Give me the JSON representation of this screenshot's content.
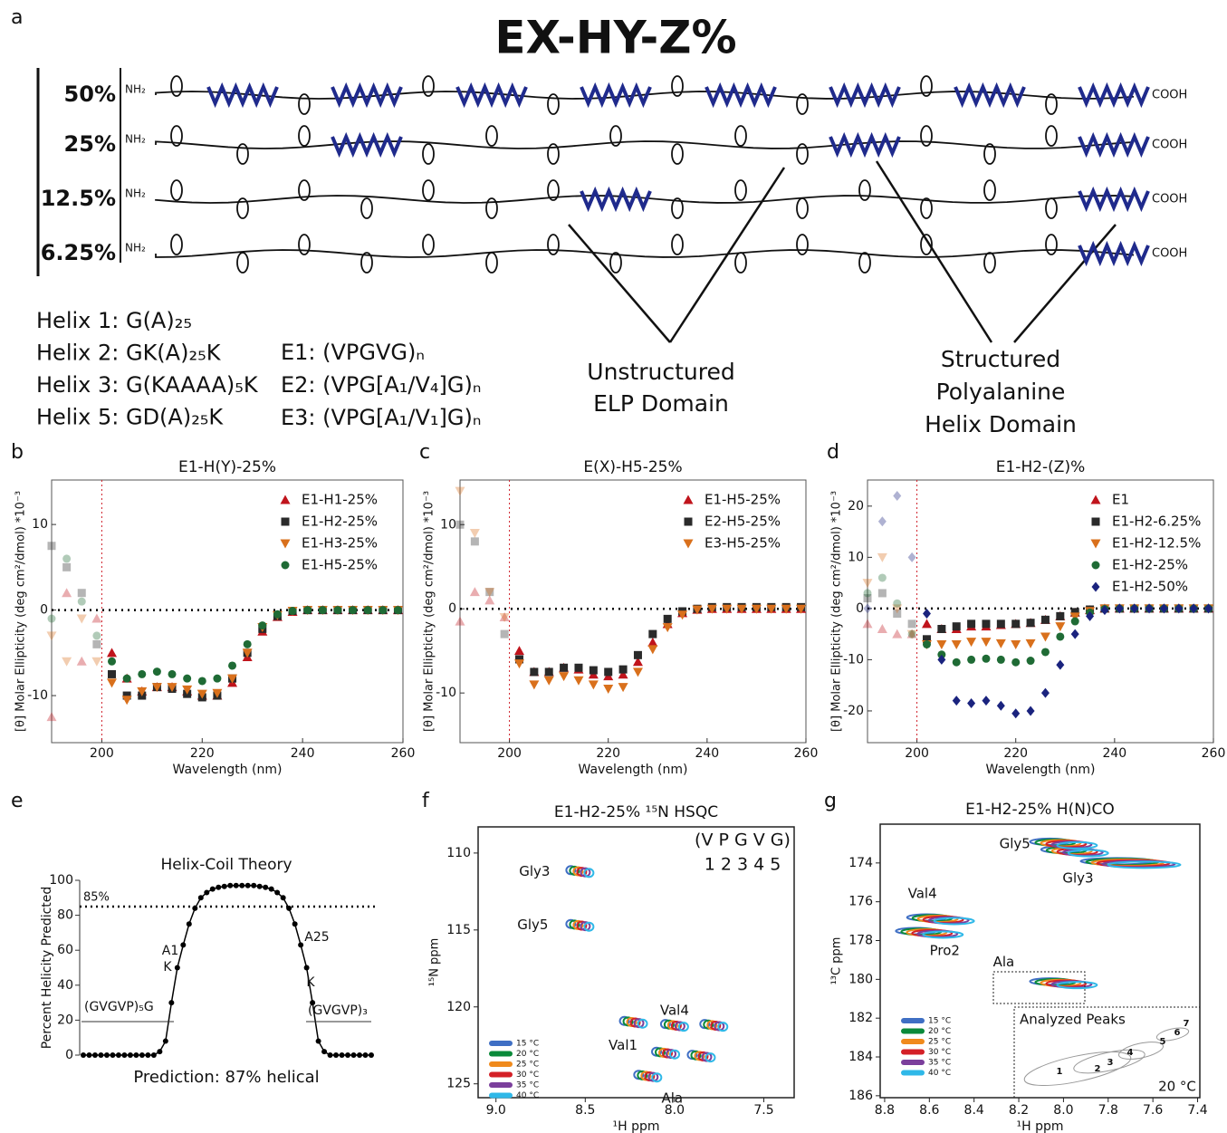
{
  "panel_a": {
    "panel": "a",
    "title": "EX-HY-Z%",
    "rows": [
      "50%",
      "25%",
      "12.5%",
      "6.25%"
    ],
    "n_terminus": "NH₂",
    "c_terminus": "COOH",
    "helices": [
      "Helix 1: G(A)₂₅",
      "Helix 2: GK(A)₂₅K",
      "Helix 3: G(KAAAA)₅K",
      "Helix 5: GD(A)₂₅K"
    ],
    "elps": [
      "E1: (VPGVG)ₙ",
      "E2: (VPG[A₁/V₄]G)ₙ",
      "E3: (VPG[A₁/V₁]G)ₙ"
    ],
    "unstructured": [
      "Unstructured",
      "ELP Domain"
    ],
    "structured": [
      "Structured",
      "Polyalanine",
      "Helix Domain"
    ]
  },
  "chart_data": [
    {
      "type": "scatter",
      "panel": "b",
      "title": "E1-H(Y)-25%",
      "x_label": "Wavelength (nm)",
      "y_label": "[θ] Molar Ellipticity (deg cm²/dmol) *10⁻³",
      "xlim": [
        190,
        260
      ],
      "ylim": [
        -15.5,
        15.2
      ],
      "xticks": [
        200,
        220,
        240,
        260
      ],
      "yticks": [
        -10,
        0,
        10
      ],
      "zero_line": true,
      "vline": 200,
      "x": [
        190,
        193,
        196,
        199,
        202,
        205,
        208,
        211,
        214,
        217,
        220,
        223,
        226,
        229,
        232,
        235,
        238,
        241,
        244,
        247,
        250,
        253,
        256,
        259
      ],
      "series": [
        {
          "name": "E1-H1-25%",
          "color": "#c0141c",
          "marker": "triangle-up",
          "values": [
            -12.5,
            2,
            -6,
            -1,
            -5,
            -8,
            -9.5,
            -9,
            -9,
            -9.5,
            -10,
            -10,
            -8.5,
            -5.5,
            -2.5,
            -0.8,
            -0.2,
            0,
            0,
            0,
            0,
            0,
            0,
            0
          ]
        },
        {
          "name": "E1-H2-25%",
          "color": "#2a2a2a",
          "marker": "square",
          "values": [
            7.5,
            5,
            2,
            -4,
            -7.5,
            -10,
            -10,
            -9,
            -9.2,
            -9.8,
            -10.2,
            -10,
            -8,
            -5,
            -2.2,
            -0.7,
            -0.1,
            0,
            0,
            0,
            0,
            0,
            0,
            0
          ]
        },
        {
          "name": "E1-H3-25%",
          "color": "#d9701c",
          "marker": "triangle-down",
          "values": [
            -3,
            -6,
            -1,
            -6,
            -8.5,
            -10.5,
            -9.5,
            -9,
            -9,
            -9.3,
            -9.8,
            -9.7,
            -8,
            -5,
            -2,
            -0.6,
            -0.1,
            0,
            0,
            0,
            0,
            0,
            0,
            0
          ]
        },
        {
          "name": "E1-H5-25%",
          "color": "#1f6b35",
          "marker": "circle",
          "values": [
            -1,
            6,
            1,
            -3,
            -6,
            -8,
            -7.5,
            -7.2,
            -7.5,
            -8,
            -8.3,
            -8,
            -6.5,
            -4,
            -1.8,
            -0.5,
            -0.1,
            0,
            0,
            0,
            0,
            0,
            0,
            0
          ]
        }
      ]
    },
    {
      "type": "scatter",
      "panel": "c",
      "title": "E(X)-H5-25%",
      "x_label": "Wavelength (nm)",
      "y_label": "[θ] Molar Ellipticity (deg cm²/dmol) *10⁻³",
      "xlim": [
        190,
        260
      ],
      "ylim": [
        -15.9,
        15.3
      ],
      "xticks": [
        200,
        220,
        240,
        260
      ],
      "yticks": [
        -10,
        0,
        10
      ],
      "zero_line": true,
      "vline": 200,
      "x": [
        190,
        193,
        196,
        199,
        202,
        205,
        208,
        211,
        214,
        217,
        220,
        223,
        226,
        229,
        232,
        235,
        238,
        241,
        244,
        247,
        250,
        253,
        256,
        259
      ],
      "series": [
        {
          "name": "E1-H5-25%",
          "color": "#c0141c",
          "marker": "triangle-up",
          "values": [
            -1.5,
            2,
            1,
            -1,
            -5,
            -7.5,
            -7.5,
            -7,
            -7.2,
            -7.8,
            -8,
            -7.8,
            -6.3,
            -4,
            -1.8,
            -0.5,
            -0.1,
            0,
            0,
            0,
            0,
            0,
            0,
            0
          ]
        },
        {
          "name": "E2-H5-25%",
          "color": "#2a2a2a",
          "marker": "square",
          "values": [
            10,
            8,
            2,
            -3,
            -6,
            -7.5,
            -7.5,
            -7,
            -7,
            -7.3,
            -7.5,
            -7.2,
            -5.5,
            -3,
            -1.2,
            -0.3,
            0,
            0.2,
            0.2,
            0.2,
            0.2,
            0.2,
            0.2,
            0.2
          ]
        },
        {
          "name": "E3-H5-25%",
          "color": "#d9701c",
          "marker": "triangle-down",
          "values": [
            14,
            9,
            2,
            -1,
            -6.5,
            -9,
            -8.5,
            -8,
            -8.5,
            -9,
            -9.5,
            -9.3,
            -7.5,
            -4.8,
            -2.2,
            -0.7,
            -0.1,
            0,
            0,
            0,
            0,
            0,
            0,
            0
          ]
        }
      ]
    },
    {
      "type": "scatter",
      "panel": "d",
      "title": "E1-H2-(Z)%",
      "x_label": "Wavelength (nm)",
      "y_label": "[θ] Molar Ellipticity (deg cm²/dmol) *10⁻³",
      "xlim": [
        190,
        260
      ],
      "ylim": [
        -26.2,
        25.1
      ],
      "xticks": [
        200,
        220,
        240,
        260
      ],
      "yticks": [
        -20,
        -10,
        0,
        10,
        20
      ],
      "zero_line": true,
      "vline": 200,
      "x": [
        190,
        193,
        196,
        199,
        202,
        205,
        208,
        211,
        214,
        217,
        220,
        223,
        226,
        229,
        232,
        235,
        238,
        241,
        244,
        247,
        250,
        253,
        256,
        259
      ],
      "series": [
        {
          "name": "E1",
          "color": "#c0141c",
          "marker": "triangle-up",
          "values": [
            -3,
            -4,
            -5,
            -5,
            -3,
            -4,
            -4,
            -3.5,
            -3.5,
            -3.2,
            -3,
            -2.8,
            -2.2,
            -1.5,
            -0.8,
            -0.3,
            0,
            0,
            0,
            0,
            0,
            0,
            0,
            0
          ]
        },
        {
          "name": "E1-H2-6.25%",
          "color": "#2a2a2a",
          "marker": "square",
          "values": [
            2,
            3,
            -1,
            -3,
            -6,
            -4,
            -3.5,
            -3,
            -3,
            -3,
            -3,
            -2.8,
            -2.2,
            -1.5,
            -0.7,
            -0.2,
            0,
            0,
            0,
            0,
            0,
            0,
            0,
            0
          ]
        },
        {
          "name": "E1-H2-12.5%",
          "color": "#d9701c",
          "marker": "triangle-down",
          "values": [
            5,
            10,
            0,
            -5,
            -7,
            -7,
            -7,
            -6.5,
            -6.5,
            -6.8,
            -7,
            -6.8,
            -5.5,
            -3.5,
            -1.6,
            -0.5,
            0,
            0,
            0,
            0,
            0,
            0,
            0,
            0
          ]
        },
        {
          "name": "E1-H2-25%",
          "color": "#1f6b35",
          "marker": "circle",
          "values": [
            3,
            6,
            1,
            -5,
            -7,
            -9,
            -10.5,
            -10,
            -9.8,
            -10,
            -10.5,
            -10.2,
            -8.5,
            -5.5,
            -2.5,
            -0.8,
            -0.1,
            0,
            0,
            0,
            0,
            0,
            0,
            0
          ]
        },
        {
          "name": "E1-H2-50%",
          "color": "#1a237e",
          "marker": "diamond",
          "values": [
            0,
            17,
            22,
            10,
            -1,
            -10,
            -18,
            -18.5,
            -18,
            -19,
            -20.5,
            -20,
            -16.5,
            -11,
            -5,
            -1.5,
            -0.3,
            0,
            0,
            0,
            0,
            0,
            0,
            0
          ]
        }
      ]
    },
    {
      "type": "line",
      "panel": "e",
      "title": "Helix-Coil Theory",
      "y_label": "Percent Helicity Predicted",
      "xlim": [
        1,
        50
      ],
      "ylim": [
        0,
        100
      ],
      "yticks": [
        0,
        20,
        40,
        60,
        80,
        100
      ],
      "color": "#000000",
      "threshold": 85,
      "threshold_label": "85%",
      "x": [
        1,
        2,
        3,
        4,
        5,
        6,
        7,
        8,
        9,
        10,
        11,
        12,
        13,
        14,
        15,
        16,
        17,
        18,
        19,
        20,
        21,
        22,
        23,
        24,
        25,
        26,
        27,
        28,
        29,
        30,
        31,
        32,
        33,
        34,
        35,
        36,
        37,
        38,
        39,
        40,
        41,
        42,
        43,
        44,
        45,
        46,
        47,
        48,
        49,
        50
      ],
      "values": [
        0,
        0,
        0,
        0,
        0,
        0,
        0,
        0,
        0,
        0,
        0,
        0,
        0,
        2,
        8,
        30,
        50,
        63,
        75,
        84,
        90,
        93,
        95,
        96,
        96.5,
        97,
        97,
        97,
        97,
        97,
        96.5,
        96,
        95,
        93,
        90,
        84,
        75,
        63,
        50,
        30,
        8,
        2,
        0,
        0,
        0,
        0,
        0,
        0,
        0,
        0
      ],
      "annotations": [
        "A1",
        "K",
        "A25",
        "K",
        "(GVGVP)₅G",
        "(GVGVP)₃"
      ],
      "prediction": "Prediction:  87% helical"
    },
    {
      "type": "contour",
      "panel": "f",
      "title": "E1-H2-25% ¹⁵N HSQC",
      "x_label": "¹H ppm",
      "y_label": "¹⁵N ppm",
      "xlim": [
        9.1,
        7.33
      ],
      "ylim": [
        108.3,
        125.9
      ],
      "xticks": [
        {
          "value": 9,
          "label": "9.0"
        },
        8.5,
        {
          "value": 8,
          "label": "8.0"
        },
        7.5
      ],
      "yticks": [
        110,
        115,
        120,
        125
      ],
      "sequence": "(V P G V G)",
      "numbering": "1 2 3 4 5",
      "peaks": {
        "x": [
          8.53,
          8.53,
          8.0,
          8.23,
          7.78,
          8.05,
          7.85,
          8.15
        ],
        "y": [
          111.2,
          114.7,
          121.2,
          121.0,
          121.2,
          123.0,
          123.2,
          124.5
        ],
        "labels": [
          "Gly3",
          "Gly5",
          "Val4",
          null,
          null,
          "Val1",
          null,
          "Ala"
        ]
      },
      "series": [
        {
          "name": "15 °C",
          "color": "#3f6fc4"
        },
        {
          "name": "20 °C",
          "color": "#0a8a3a"
        },
        {
          "name": "25 °C",
          "color": "#f08a1c"
        },
        {
          "name": "30 °C",
          "color": "#d42027"
        },
        {
          "name": "35 °C",
          "color": "#7b3f9c"
        },
        {
          "name": "40 °C",
          "color": "#2fb8e8"
        }
      ]
    },
    {
      "type": "contour",
      "panel": "g",
      "title": "E1-H2-25% H(N)CO",
      "x_label": "¹H ppm",
      "y_label": "¹³C ppm",
      "xlim": [
        8.82,
        7.39
      ],
      "ylim": [
        172.0,
        186.1
      ],
      "xticks": [
        8.8,
        8.6,
        8.4,
        8.2,
        {
          "value": 8,
          "label": "8.0"
        },
        7.8,
        7.6,
        7.4
      ],
      "yticks": [
        174,
        176,
        178,
        180,
        182,
        184,
        186
      ],
      "peaks": {
        "x": [
          7.95,
          7.7,
          8.0,
          8.55,
          8.6,
          8.0
        ],
        "y": [
          173.4,
          174.0,
          173.0,
          176.9,
          177.6,
          180.2
        ],
        "labels": [
          "Gly5",
          "Gly3",
          null,
          "Val4",
          "Pro2",
          "Ala"
        ]
      },
      "inset": {
        "title": "Analyzed Peaks",
        "labels": [
          "1",
          "2",
          "3",
          "4",
          "5",
          "6",
          "7"
        ],
        "temperature": "20 °C"
      },
      "series": [
        {
          "name": "15 °C",
          "color": "#3f6fc4"
        },
        {
          "name": "20 °C",
          "color": "#0a8a3a"
        },
        {
          "name": "25 °C",
          "color": "#f08a1c"
        },
        {
          "name": "30 °C",
          "color": "#d42027"
        },
        {
          "name": "35 °C",
          "color": "#7b3f9c"
        },
        {
          "name": "40 °C",
          "color": "#2fb8e8"
        }
      ]
    }
  ]
}
